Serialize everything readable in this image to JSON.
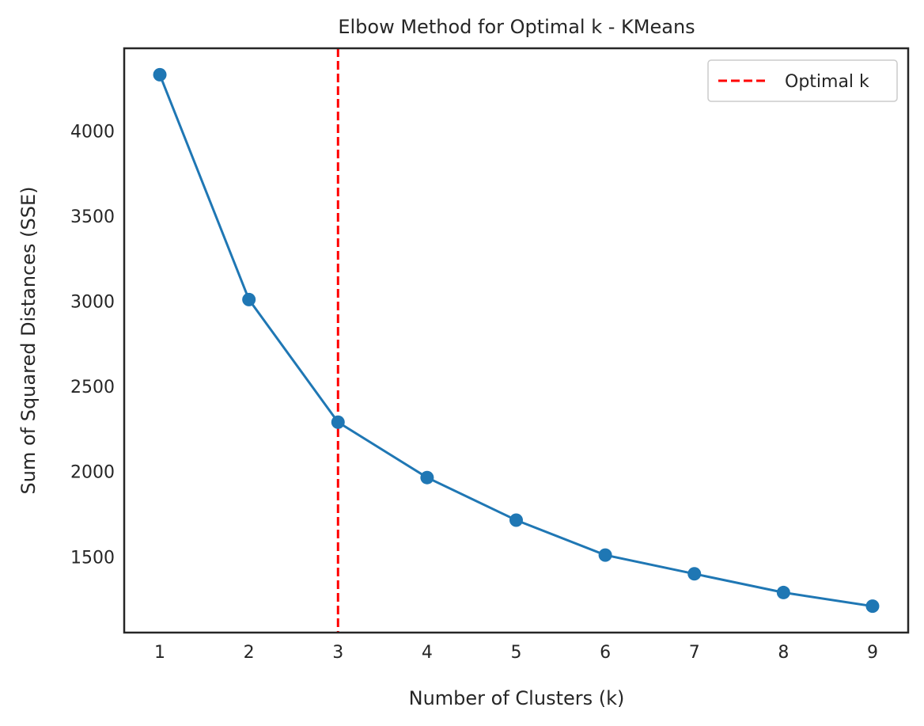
{
  "chart_data": {
    "type": "line",
    "title": "Elbow Method for Optimal k - KMeans",
    "xlabel": "Number of Clusters (k)",
    "ylabel": "Sum of Squared Distances (SSE)",
    "x": [
      1,
      2,
      3,
      4,
      5,
      6,
      7,
      8,
      9
    ],
    "series": [
      {
        "values": [
          4330,
          3010,
          2290,
          1965,
          1715,
          1510,
          1400,
          1290,
          1210
        ],
        "color": "#1f77b4"
      }
    ],
    "xticks": [
      "1",
      "2",
      "3",
      "4",
      "5",
      "6",
      "7",
      "8",
      "9"
    ],
    "yticks": [
      "1500",
      "2000",
      "2500",
      "3000",
      "3500",
      "4000"
    ],
    "xlim": [
      0.6,
      9.4
    ],
    "ylim": [
      1055,
      4485
    ],
    "grid": false,
    "vline": {
      "x": 3,
      "label": "Optimal k",
      "color": "#ff0000",
      "style": "dashed"
    },
    "legend": {
      "placement": "top-right",
      "entries": [
        "Optimal k"
      ]
    }
  }
}
